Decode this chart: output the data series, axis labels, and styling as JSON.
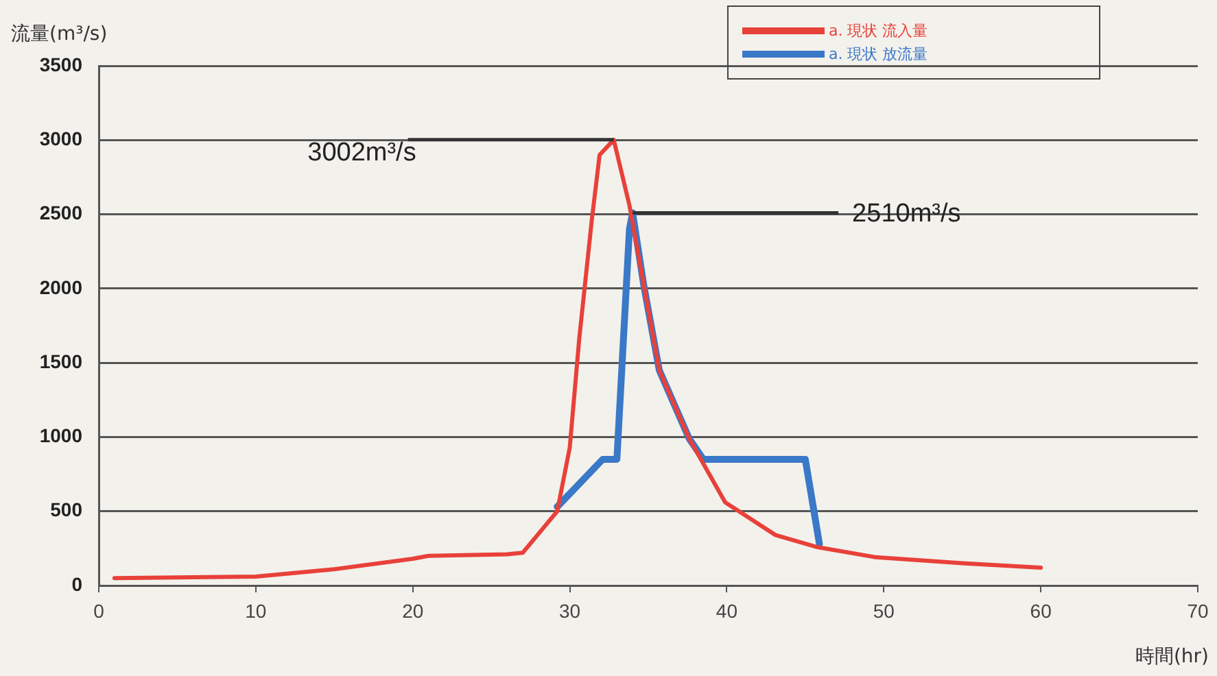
{
  "chart_data": {
    "type": "line",
    "xlabel": "時間(hr)",
    "ylabel": "流量(m³/s)",
    "xlim": [
      0,
      70
    ],
    "xticks": [
      0,
      10,
      20,
      30,
      40,
      50,
      60,
      70
    ],
    "ylim": [
      0,
      3500
    ],
    "yticks": [
      0,
      500,
      1000,
      1500,
      2000,
      2500,
      3000,
      3500
    ],
    "grid": "y",
    "legend": "top right",
    "marker": "none",
    "line_style": "solid",
    "series": [
      {
        "name": "a. 現状 流入量",
        "color": "#e8413a",
        "x": [
          1,
          10,
          15,
          20,
          21,
          26,
          27,
          29.2,
          30,
          30.6,
          31.4,
          31.9,
          32.8,
          33.8,
          34.7,
          35.7,
          37.6,
          39.9,
          43.1,
          45.7,
          49.5,
          55,
          60
        ],
        "values": [
          50,
          60,
          110,
          180,
          200,
          210,
          220,
          500,
          930,
          1660,
          2460,
          2900,
          3002,
          2560,
          2030,
          1450,
          990,
          560,
          340,
          260,
          190,
          150,
          120
        ]
      },
      {
        "name": "a. 現状 放流量",
        "color": "#3a78c8",
        "x": [
          29.2,
          32.1,
          33,
          33.8,
          34,
          34.7,
          35.7,
          37.6,
          38.5,
          45,
          45.9
        ],
        "values": [
          530,
          850,
          850,
          2400,
          2510,
          2030,
          1450,
          990,
          850,
          850,
          280
        ]
      }
    ],
    "annotations": [
      {
        "text": "3002m³/s",
        "x": 32.8,
        "y": 3002
      },
      {
        "text": "2510m³/s",
        "x": 34,
        "y": 2510
      }
    ]
  }
}
